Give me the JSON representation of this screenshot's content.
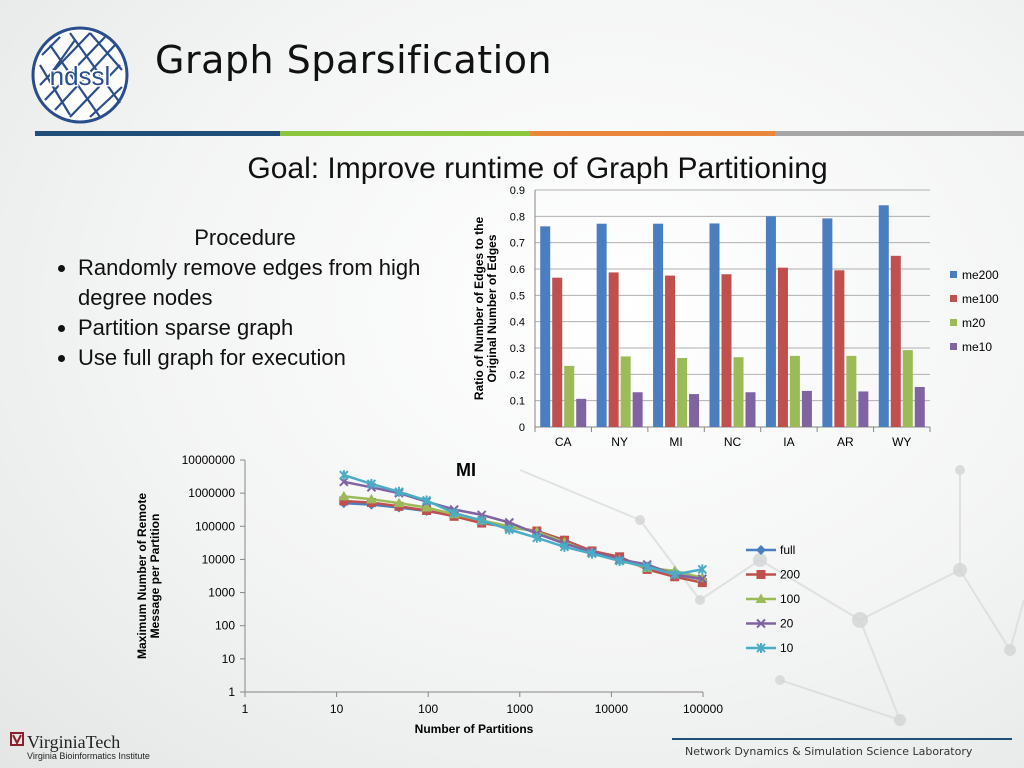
{
  "slide": {
    "title": "Graph Sparsification",
    "logo_text": "ndssl",
    "goal": "Goal: Improve runtime of Graph Partitioning",
    "procedure": {
      "heading": "Procedure",
      "bullets": [
        "Randomly remove edges from high degree nodes",
        "Partition sparse graph",
        "Use full graph for execution"
      ]
    },
    "footer": {
      "org": "VirginiaTech",
      "org_sub": "Virginia Bioinformatics Institute",
      "lab": "Network Dynamics & Simulation Science Laboratory"
    },
    "colors": {
      "stripe_blue": "#1f4e79",
      "stripe_green": "#8cc63f",
      "stripe_orange": "#e8873a",
      "stripe_gray": "#a6a6a6"
    }
  },
  "chart_data": [
    {
      "type": "bar",
      "title": "",
      "ylabel": "Ratio of Number of Edges to the Original Number of Edges",
      "ylim": [
        0,
        0.9
      ],
      "yticks": [
        "0",
        "0.1",
        "0.2",
        "0.3",
        "0.4",
        "0.5",
        "0.6",
        "0.7",
        "0.8",
        "0.9"
      ],
      "categories": [
        "CA",
        "NY",
        "MI",
        "NC",
        "IA",
        "AR",
        "WY"
      ],
      "legend_position": "right",
      "series": [
        {
          "name": "me200",
          "color": "#4a7ebf",
          "values": [
            0.762,
            0.772,
            0.772,
            0.773,
            0.8,
            0.792,
            0.842
          ]
        },
        {
          "name": "me100",
          "color": "#c0504d",
          "values": [
            0.567,
            0.587,
            0.575,
            0.58,
            0.605,
            0.595,
            0.65
          ]
        },
        {
          "name": "m20",
          "color": "#9bbb59",
          "values": [
            0.232,
            0.268,
            0.262,
            0.265,
            0.27,
            0.27,
            0.292
          ]
        },
        {
          "name": "me10",
          "color": "#8064a2",
          "values": [
            0.107,
            0.132,
            0.125,
            0.132,
            0.137,
            0.135,
            0.152
          ]
        }
      ]
    },
    {
      "type": "line",
      "title": "MI",
      "xlabel": "Number of Partitions",
      "ylabel": "Maximum Number of Remote Message per Partition",
      "xscale": "log",
      "yscale": "log",
      "xlim": [
        1,
        100000
      ],
      "ylim": [
        1,
        10000000
      ],
      "xticks": [
        "1",
        "10",
        "100",
        "1000",
        "10000",
        "100000"
      ],
      "yticks": [
        "1",
        "10",
        "100",
        "1000",
        "10000",
        "100000",
        "1000000",
        "10000000"
      ],
      "legend_position": "right",
      "x": [
        12,
        24,
        48,
        96,
        192,
        384,
        768,
        1536,
        3072,
        6144,
        12288,
        24576,
        49152,
        98304
      ],
      "series": [
        {
          "name": "full",
          "color": "#4a7ebf",
          "marker": "diamond",
          "values": [
            500000,
            450000,
            370000,
            290000,
            210000,
            140000,
            95000,
            70000,
            38000,
            18000,
            11000,
            6000,
            3500,
            2500
          ]
        },
        {
          "name": "200",
          "color": "#c0504d",
          "marker": "square",
          "values": [
            580000,
            520000,
            400000,
            300000,
            200000,
            125000,
            95000,
            72000,
            38000,
            18000,
            12000,
            5000,
            3000,
            2000
          ]
        },
        {
          "name": "100",
          "color": "#9bbb59",
          "marker": "triangle",
          "values": [
            800000,
            650000,
            500000,
            370000,
            230000,
            150000,
            100000,
            68000,
            33000,
            16000,
            9500,
            5500,
            4500,
            2800
          ]
        },
        {
          "name": "20",
          "color": "#8064a2",
          "marker": "x",
          "values": [
            2200000,
            1500000,
            1000000,
            550000,
            320000,
            220000,
            130000,
            60000,
            30000,
            17000,
            10000,
            7000,
            3500,
            2600
          ]
        },
        {
          "name": "10",
          "color": "#4bacc6",
          "marker": "star",
          "values": [
            3500000,
            1900000,
            1100000,
            600000,
            250000,
            150000,
            80000,
            45000,
            24000,
            15000,
            9000,
            6000,
            3500,
            5000
          ]
        }
      ]
    }
  ]
}
